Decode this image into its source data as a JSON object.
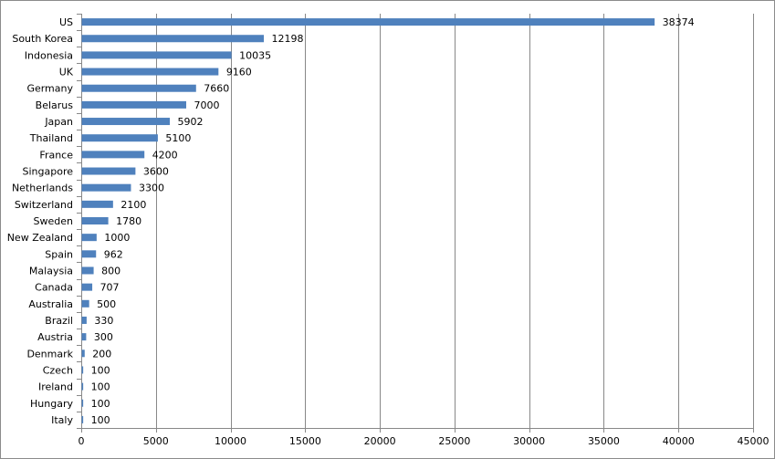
{
  "chart_data": {
    "type": "bar",
    "orientation": "horizontal",
    "categories": [
      "US",
      "South Korea",
      "Indonesia",
      "UK",
      "Germany",
      "Belarus",
      "Japan",
      "Thailand",
      "France",
      "Singapore",
      "Netherlands",
      "Switzerland",
      "Sweden",
      "New Zealand",
      "Spain",
      "Malaysia",
      "Canada",
      "Australia",
      "Brazil",
      "Austria",
      "Denmark",
      "Czech",
      "Ireland",
      "Hungary",
      "Italy"
    ],
    "values": [
      38374,
      12198,
      10035,
      9160,
      7660,
      7000,
      5902,
      5100,
      4200,
      3600,
      3300,
      2100,
      1780,
      1000,
      962,
      800,
      707,
      500,
      330,
      300,
      200,
      100,
      100,
      100,
      100
    ],
    "title": "",
    "xlabel": "",
    "ylabel": "",
    "xlim": [
      0,
      45000
    ],
    "x_ticks": [
      0,
      5000,
      10000,
      15000,
      20000,
      25000,
      30000,
      35000,
      40000,
      45000
    ],
    "grid": "vertical major gridlines",
    "legend": "none",
    "bar_color": "#4f81bd",
    "grid_color": "#888888"
  }
}
